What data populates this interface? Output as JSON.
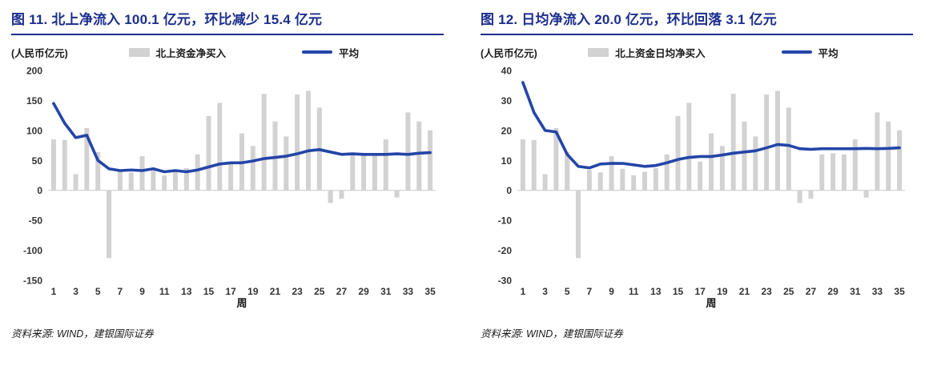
{
  "colors": {
    "title": "#1c2e8e",
    "bar": "#d2d2d2",
    "line": "#2345a8"
  },
  "chart_data": [
    {
      "type": "bar",
      "title": "图 11. 北上净流入 100.1 亿元，环比减少 15.4 亿元",
      "unit_label": "(人民币亿元)",
      "xlabel": "周",
      "x": [
        1,
        2,
        3,
        4,
        5,
        6,
        7,
        8,
        9,
        10,
        11,
        12,
        13,
        14,
        15,
        16,
        17,
        18,
        19,
        20,
        21,
        22,
        23,
        24,
        25,
        26,
        27,
        28,
        29,
        30,
        31,
        32,
        33,
        34,
        35
      ],
      "x_ticks": [
        1,
        3,
        5,
        7,
        9,
        11,
        13,
        15,
        17,
        19,
        21,
        23,
        25,
        27,
        29,
        31,
        33,
        35
      ],
      "ylim": [
        -150,
        200
      ],
      "ytick_step": 50,
      "grid": false,
      "legend_position": "top",
      "series": [
        {
          "name": "北上资金净买入",
          "type": "bar",
          "color": "#d2d2d2",
          "values": [
            85,
            84,
            27,
            104,
            64,
            -113,
            34,
            30,
            57,
            36,
            25,
            31,
            37,
            60,
            124,
            146,
            48,
            95,
            74,
            161,
            115,
            90,
            160,
            166,
            138,
            -21,
            -14,
            60,
            62,
            60,
            85,
            -12,
            130,
            115,
            100.1
          ]
        },
        {
          "name": "平均",
          "type": "line",
          "color": "#2345a8",
          "values": [
            145,
            112,
            88,
            92,
            50,
            36,
            33,
            34,
            33,
            36,
            31,
            33,
            31,
            34,
            39,
            44,
            46,
            46,
            49,
            53,
            55,
            57,
            61,
            66,
            68,
            64,
            60,
            61,
            60,
            60,
            60,
            61,
            60,
            62,
            63
          ]
        }
      ],
      "source": "资料来源: WIND，建银国际证券"
    },
    {
      "type": "bar",
      "title": "图 12. 日均净流入 20.0 亿元，环比回落 3.1 亿元",
      "unit_label": "(人民币亿元)",
      "xlabel": "周",
      "x": [
        1,
        2,
        3,
        4,
        5,
        6,
        7,
        8,
        9,
        10,
        11,
        12,
        13,
        14,
        15,
        16,
        17,
        18,
        19,
        20,
        21,
        22,
        23,
        24,
        25,
        26,
        27,
        28,
        29,
        30,
        31,
        32,
        33,
        34,
        35
      ],
      "x_ticks": [
        1,
        3,
        5,
        7,
        9,
        11,
        13,
        15,
        17,
        19,
        21,
        23,
        25,
        27,
        29,
        31,
        33,
        35
      ],
      "ylim": [
        -30,
        40
      ],
      "ytick_step": 10,
      "grid": false,
      "legend_position": "top",
      "series": [
        {
          "name": "北上资金日均净买入",
          "type": "bar",
          "color": "#d2d2d2",
          "values": [
            17,
            16.8,
            5.4,
            20.8,
            12.8,
            -22.6,
            6.8,
            6,
            11.4,
            7.2,
            5,
            6.2,
            7.4,
            12,
            24.8,
            29.2,
            9.6,
            19,
            14.8,
            32.2,
            23,
            18,
            32,
            33.2,
            27.6,
            -4.2,
            -2.8,
            12,
            12.4,
            12,
            17,
            -2.4,
            26,
            23,
            20
          ]
        },
        {
          "name": "平均",
          "type": "line",
          "color": "#2345a8",
          "values": [
            36,
            26,
            20,
            19.5,
            12,
            8,
            7.5,
            8.8,
            9,
            9,
            8.5,
            8,
            8.3,
            9.2,
            10.3,
            11,
            11.3,
            11.3,
            11.8,
            12.4,
            12.8,
            13.2,
            14.2,
            15.3,
            15,
            13.9,
            13.7,
            13.9,
            13.9,
            13.9,
            13.9,
            14,
            13.9,
            14,
            14.2
          ]
        }
      ],
      "source": "资料来源: WIND，建银国际证券"
    }
  ]
}
